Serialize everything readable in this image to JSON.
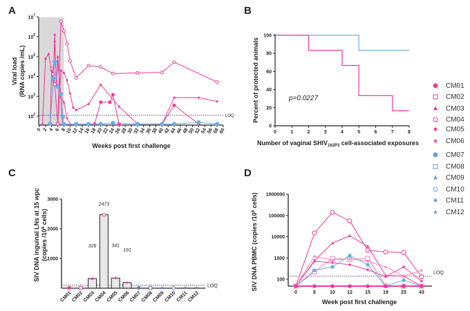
{
  "colors": {
    "pink": "#f0399a",
    "pink_light": "#f77fbf",
    "blue": "#6aaee8",
    "blue_dark": "#5b8fd0",
    "shade": "#d9d9d9"
  },
  "legend": [
    {
      "label": "CM01",
      "marker": "filled-circle",
      "color": "#f0399a"
    },
    {
      "label": "CM02",
      "marker": "open-square",
      "color": "#f0399a"
    },
    {
      "label": "CM03",
      "marker": "filled-triangle",
      "color": "#f0399a"
    },
    {
      "label": "CM04",
      "marker": "open-circle",
      "color": "#f0399a"
    },
    {
      "label": "CM05",
      "marker": "filled-diamond",
      "color": "#f0399a"
    },
    {
      "label": "CM06",
      "marker": "star",
      "color": "#f0399a"
    },
    {
      "label": "CM07",
      "marker": "filled-circle",
      "color": "#6a9fe0"
    },
    {
      "label": "CM08",
      "marker": "open-square",
      "color": "#6a9fe0"
    },
    {
      "label": "CM09",
      "marker": "filled-triangle",
      "color": "#6a9fe0"
    },
    {
      "label": "CM10",
      "marker": "open-circle",
      "color": "#6a9fe0"
    },
    {
      "label": "CM11",
      "marker": "filled-diamond",
      "color": "#6a9fe0"
    },
    {
      "label": "CM12",
      "marker": "star",
      "color": "#6a9fe0"
    }
  ],
  "chart_data": [
    {
      "panel": "A",
      "type": "line",
      "log_y": true,
      "ylabel_line1": "Viral load",
      "ylabel_line2": "(RNA copies /mL)",
      "xlabel": "Weeks post first challenge",
      "xlim": [
        0,
        60
      ],
      "xticks": [
        0,
        2,
        4,
        6,
        8,
        10,
        12,
        14,
        16,
        18,
        20,
        22,
        24,
        26,
        28,
        30,
        32,
        34,
        36,
        38,
        40,
        42,
        44,
        46,
        48,
        50,
        52,
        54,
        56,
        58,
        60
      ],
      "ylim": [
        40,
        10000000
      ],
      "yticks": [
        "10^2",
        "10^3",
        "10^4",
        "10^5",
        "10^6",
        "10^7"
      ],
      "loq": 110,
      "loq_label": "LOQ",
      "shaded_weeks": [
        0,
        8
      ],
      "series": [
        {
          "id": "CM04",
          "color": "pink",
          "marker": "open-circle",
          "x": [
            6,
            7,
            8,
            9,
            10,
            12,
            16,
            20,
            24,
            32,
            40,
            44,
            58
          ],
          "y": [
            40,
            6000000,
            2000000,
            450000,
            60000,
            8500,
            35000,
            30000,
            14000,
            15000,
            16000,
            52000,
            5200
          ]
        },
        {
          "id": "CM05",
          "color": "pink",
          "marker": "filled-diamond",
          "x": [
            6,
            7,
            8,
            9,
            10,
            11,
            12,
            16,
            20,
            26,
            32,
            40,
            44,
            52,
            58
          ],
          "y": [
            40,
            20000,
            15000,
            6500,
            1400,
            270,
            200,
            400,
            3800,
            300,
            40,
            40,
            850,
            850,
            550
          ]
        },
        {
          "id": "CM03",
          "color": "pink",
          "marker": "filled-triangle",
          "x": [
            1,
            2,
            3,
            4,
            4.5,
            5,
            5.5,
            6,
            7,
            8,
            9,
            10
          ],
          "y": [
            40,
            80000,
            140000,
            20000,
            6000,
            1300000,
            4000,
            100000,
            900,
            500,
            80,
            40
          ]
        },
        {
          "id": "CM06",
          "color": "pink",
          "marker": "star",
          "x": [
            3.5,
            4.5,
            5,
            5.5,
            6,
            7,
            7.5,
            8
          ],
          "y": [
            40,
            6000,
            600000,
            4000,
            60000,
            1000,
            40,
            40
          ]
        },
        {
          "id": "CM02",
          "color": "pink",
          "marker": "open-square",
          "x": [
            3.5,
            4,
            4.5,
            5,
            6
          ],
          "y": [
            40,
            25000,
            13000,
            4000,
            40
          ]
        },
        {
          "id": "CM01",
          "color": "pink",
          "marker": "filled-circle",
          "x": [
            18,
            20,
            23,
            24,
            26
          ],
          "y": [
            40,
            500,
            500,
            1200,
            40
          ]
        },
        {
          "id": "CM01b",
          "color": "pink",
          "marker": "filled-circle",
          "x": [
            40,
            44,
            52
          ],
          "y": [
            40,
            350,
            40
          ]
        },
        {
          "id": "CM07",
          "color": "blue",
          "marker": "filled-circle",
          "x": [
            3.5,
            4.5,
            5,
            6,
            7,
            7.7,
            8,
            12,
            16,
            20,
            24,
            32,
            40,
            44,
            52,
            58
          ],
          "y": [
            40,
            8000,
            55000,
            3000,
            1300,
            90,
            40,
            40,
            40,
            40,
            45,
            40,
            40,
            40,
            48,
            40
          ]
        }
      ]
    },
    {
      "panel": "B",
      "type": "line",
      "step": true,
      "ylabel": "Percent of protected animals",
      "xlabel_pre": "Number of vaginal SHIV",
      "xlabel_sub": "162P3",
      "xlabel_post": " cell-associated exposures",
      "xlim": [
        0,
        8
      ],
      "xticks": [
        0,
        1,
        2,
        3,
        4,
        5,
        6,
        7,
        8
      ],
      "ylim": [
        0,
        100
      ],
      "yticks": [
        0,
        20,
        40,
        60,
        80,
        100
      ],
      "annotation": "p=0.0227",
      "series": [
        {
          "color": "blue",
          "x": [
            0,
            5,
            8
          ],
          "y": [
            100,
            83.3,
            83.3
          ]
        },
        {
          "color": "pink",
          "x": [
            0,
            2,
            4,
            5,
            7,
            8
          ],
          "y": [
            100,
            83.3,
            66.7,
            33.3,
            16.7,
            16.7
          ]
        }
      ]
    },
    {
      "panel": "C",
      "type": "bar",
      "ylabel_line1": "SIV DNA inguinal LNs at 15 wpc",
      "ylabel_line2": "(copies /10^6 cells)",
      "categories": [
        "CM01",
        "CM02",
        "CM03",
        "CM04",
        "CM05",
        "CM06",
        "CM07",
        "CM08",
        "CM09",
        "CM10",
        "CM11",
        "CM12"
      ],
      "values": [
        0,
        0,
        326,
        2473,
        341,
        191,
        0,
        0,
        0,
        0,
        0,
        0
      ],
      "data_labels": [
        "",
        "",
        "326",
        "2473",
        "341",
        "191",
        "",
        "",
        "",
        "",
        "",
        ""
      ],
      "ylim": [
        0,
        3000
      ],
      "yticks": [
        1000,
        2000,
        3000
      ],
      "loq": 100,
      "loq_label": "LOQ"
    },
    {
      "panel": "D",
      "type": "line",
      "log_y": true,
      "ylabel": "SIV DNA PBMC (copies /10^6 cells)",
      "xlabel": "Week post first challenge",
      "categories": [
        "0",
        "8",
        "10",
        "12",
        "15",
        "19",
        "23",
        "43"
      ],
      "ylim": [
        47,
        1000000
      ],
      "yticks": [
        100,
        1000,
        10000,
        100000,
        1000000
      ],
      "loq": 140,
      "loq_label": "LOQ",
      "series": [
        {
          "id": "CM04",
          "color": "pink",
          "marker": "open-circle",
          "y": [
            47,
            15000,
            140000,
            55000,
            2300,
            1900,
            1800,
            130
          ]
        },
        {
          "id": "CM03",
          "color": "pink",
          "marker": "filled-triangle",
          "y": [
            47,
            750,
            5000,
            11000,
            3500,
            150,
            140,
            47
          ]
        },
        {
          "id": "CM02",
          "color": "pink_light",
          "marker": "open-square",
          "y": [
            47,
            220,
            950,
            850,
            950,
            50,
            47,
            47
          ]
        },
        {
          "id": "CM07",
          "color": "blue",
          "marker": "filled-circle",
          "y": [
            47,
            260,
            380,
            1300,
            480,
            47,
            90,
            47
          ]
        },
        {
          "id": "CM05",
          "color": "pink",
          "marker": "filled-diamond",
          "y": [
            47,
            700,
            600,
            480,
            280,
            130,
            380,
            80
          ]
        },
        {
          "id": "CM06",
          "color": "pink_light",
          "marker": "star",
          "y": [
            47,
            1200,
            800,
            900,
            700,
            380,
            140,
            260
          ]
        },
        {
          "id": "CM01",
          "color": "pink",
          "marker": "filled-circle",
          "y": [
            47,
            47,
            47,
            47,
            47,
            47,
            47,
            47
          ]
        }
      ]
    }
  ],
  "panel_letters": [
    "A",
    "B",
    "C",
    "D"
  ]
}
